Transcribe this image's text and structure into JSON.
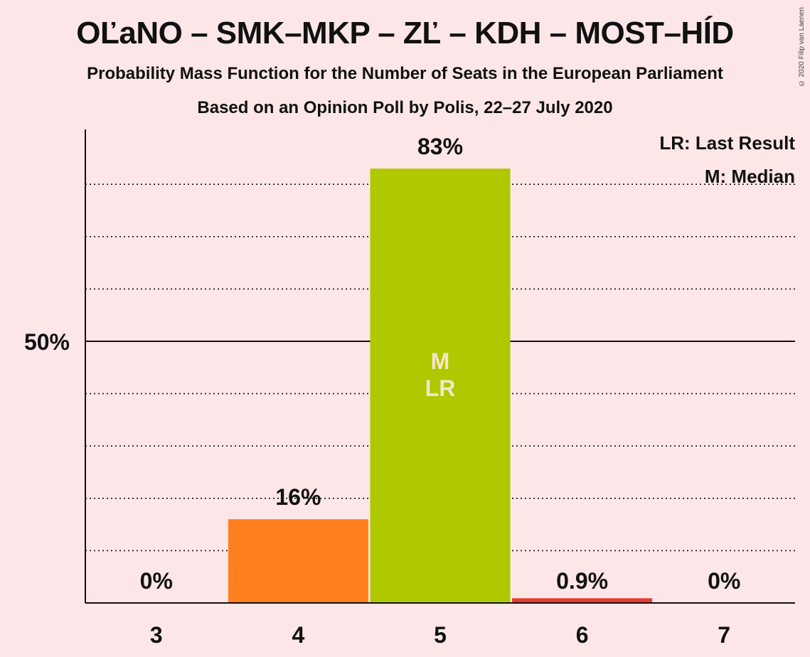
{
  "header": {
    "title": "OĽaNO – SMK–MKP – ZĽ – KDH – MOST–HÍD",
    "subtitle": "Probability Mass Function for the Number of Seats in the European Parliament",
    "subtitle2": "Based on an Opinion Poll by Polis, 22–27 July 2020",
    "copyright": "© 2020 Filip van Laenen"
  },
  "legend": {
    "last_result": "LR: Last Result",
    "median": "M: Median"
  },
  "chart_data": {
    "type": "bar",
    "title": "OĽaNO – SMK–MKP – ZĽ – KDH – MOST–HÍD",
    "categories": [
      "3",
      "4",
      "5",
      "6",
      "7"
    ],
    "values": [
      0,
      16,
      83,
      0.9,
      0
    ],
    "labels": [
      "0%",
      "16%",
      "83%",
      "0.9%",
      "0%"
    ],
    "colors": [
      "#ff7f1e",
      "#ff7f1e",
      "#afc800",
      "#e63c2e",
      "#e63c2e"
    ],
    "ylim": [
      0,
      90
    ],
    "y_tick_label": "50%",
    "y_tick_value": 50,
    "gridlines_dotted": [
      10,
      20,
      30,
      40,
      60,
      70,
      80
    ],
    "markers": [
      {
        "category": "5",
        "text": [
          "M",
          "LR"
        ]
      }
    ],
    "legend_placement": "top-right",
    "grid": true
  }
}
